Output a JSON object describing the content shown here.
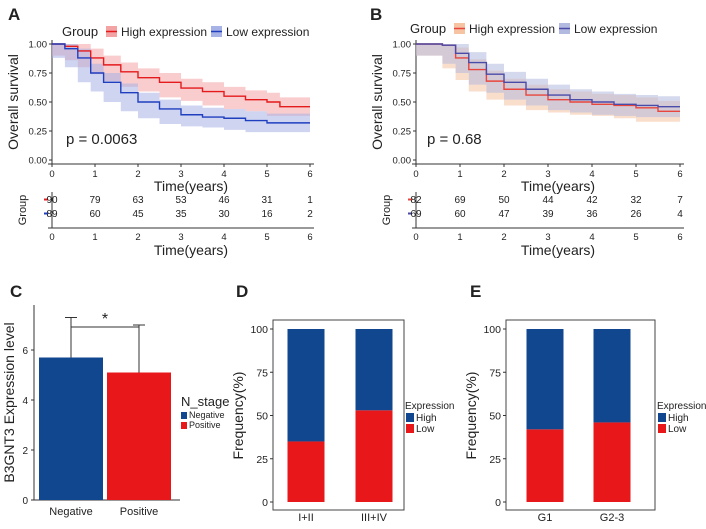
{
  "chart_data": [
    {
      "panel": "A",
      "type": "line",
      "subtype": "kaplan-meier",
      "legend_title": "Group",
      "series": [
        {
          "name": "High expression",
          "color": "#e41a1c",
          "ci_color": "#f4a3a5",
          "x": [
            0,
            0.3,
            0.6,
            0.9,
            1.2,
            1.6,
            2.0,
            2.5,
            3.0,
            3.5,
            4.0,
            4.5,
            5.0,
            5.3,
            6.0
          ],
          "y": [
            1.0,
            0.98,
            0.94,
            0.88,
            0.82,
            0.76,
            0.71,
            0.67,
            0.62,
            0.59,
            0.55,
            0.52,
            0.5,
            0.46,
            0.46
          ]
        },
        {
          "name": "Low expression",
          "color": "#1f3fbf",
          "ci_color": "#a7b3e6",
          "x": [
            0,
            0.3,
            0.6,
            0.9,
            1.2,
            1.6,
            2.0,
            2.5,
            3.0,
            3.5,
            4.0,
            4.5,
            5.0,
            6.0
          ],
          "y": [
            1.0,
            0.96,
            0.88,
            0.75,
            0.67,
            0.58,
            0.5,
            0.44,
            0.39,
            0.37,
            0.36,
            0.34,
            0.32,
            0.32
          ]
        }
      ],
      "ci_half_width": 0.08,
      "pvalue": "p = 0.0063",
      "xlabel": "Time(years)",
      "ylabel": "Overall survival",
      "xticks": [
        "0",
        "1",
        "2",
        "3",
        "4",
        "5",
        "6"
      ],
      "yticks": [
        "0.00",
        "0.25",
        "0.50",
        "0.75",
        "1.00"
      ],
      "xlim": [
        0,
        6
      ],
      "ylim": [
        0,
        1
      ],
      "risk_table": {
        "ylabel": "Group",
        "rows": [
          {
            "color": "#e41a1c",
            "values": [
              "90",
              "79",
              "63",
              "53",
              "46",
              "31",
              "1"
            ]
          },
          {
            "color": "#1f3fbf",
            "values": [
              "89",
              "60",
              "45",
              "35",
              "30",
              "16",
              "2"
            ]
          }
        ],
        "xticks": [
          "0",
          "1",
          "2",
          "3",
          "4",
          "5",
          "6"
        ],
        "xlabel": "Time(years)"
      }
    },
    {
      "panel": "B",
      "type": "line",
      "subtype": "kaplan-meier",
      "legend_title": "Group",
      "series": [
        {
          "name": "High expression",
          "color": "#e8453c",
          "ci_color": "#f6c3a3",
          "x": [
            0,
            0.6,
            0.9,
            1.2,
            1.6,
            2.0,
            2.5,
            3.0,
            3.5,
            4.0,
            4.5,
            5.0,
            5.5,
            6.0
          ],
          "y": [
            1.0,
            0.99,
            0.88,
            0.78,
            0.68,
            0.61,
            0.56,
            0.52,
            0.5,
            0.48,
            0.47,
            0.45,
            0.42,
            0.42
          ]
        },
        {
          "name": "Low expression",
          "color": "#4a4aa8",
          "ci_color": "#b3badf",
          "x": [
            0,
            0.6,
            0.9,
            1.2,
            1.6,
            2.0,
            2.5,
            3.0,
            3.5,
            4.0,
            4.5,
            5.0,
            5.5,
            6.0
          ],
          "y": [
            1.0,
            0.99,
            0.92,
            0.84,
            0.74,
            0.67,
            0.61,
            0.56,
            0.52,
            0.5,
            0.48,
            0.47,
            0.46,
            0.46
          ]
        }
      ],
      "ci_half_width": 0.09,
      "pvalue": "p = 0.68",
      "xlabel": "Time(years)",
      "ylabel": "Overall survival",
      "xticks": [
        "0",
        "1",
        "2",
        "3",
        "4",
        "5",
        "6"
      ],
      "yticks": [
        "0.00",
        "0.25",
        "0.50",
        "0.75",
        "1.00"
      ],
      "xlim": [
        0,
        6
      ],
      "ylim": [
        0,
        1
      ],
      "risk_table": {
        "ylabel": "Group",
        "rows": [
          {
            "color": "#e8453c",
            "values": [
              "82",
              "69",
              "50",
              "44",
              "42",
              "32",
              "7"
            ]
          },
          {
            "color": "#4a4aa8",
            "values": [
              "69",
              "60",
              "47",
              "39",
              "36",
              "26",
              "4"
            ]
          }
        ],
        "xticks": [
          "0",
          "1",
          "2",
          "3",
          "4",
          "5",
          "6"
        ],
        "xlabel": "Time(years)"
      }
    },
    {
      "panel": "C",
      "type": "bar",
      "categories": [
        "Negative",
        "Positive"
      ],
      "values": [
        5.7,
        5.1
      ],
      "errors": [
        1.6,
        1.9
      ],
      "colors": [
        "#11478f",
        "#e8171a"
      ],
      "ylabel": "B3GNT3 Expression level",
      "yticks": [
        "0",
        "2",
        "4",
        "6"
      ],
      "ylim": [
        0,
        7.8
      ],
      "significance": "*",
      "legend_title": "N_stage",
      "legend": [
        "Negative",
        "Positive"
      ]
    },
    {
      "panel": "D",
      "type": "bar",
      "stacked": true,
      "categories": [
        "I+II",
        "III+IV"
      ],
      "series": [
        {
          "name": "Low",
          "color": "#e8171a",
          "values": [
            35,
            53
          ]
        },
        {
          "name": "High",
          "color": "#11478f",
          "values": [
            65,
            47
          ]
        }
      ],
      "ylabel": "Frequency(%)",
      "yticks": [
        "0",
        "25",
        "50",
        "75",
        "100"
      ],
      "ylim": [
        0,
        100
      ],
      "legend_title": "Expression",
      "legend": [
        "High",
        "Low"
      ]
    },
    {
      "panel": "E",
      "type": "bar",
      "stacked": true,
      "categories": [
        "G1",
        "G2-3"
      ],
      "series": [
        {
          "name": "Low",
          "color": "#e8171a",
          "values": [
            42,
            46
          ]
        },
        {
          "name": "High",
          "color": "#11478f",
          "values": [
            58,
            54
          ]
        }
      ],
      "ylabel": "Frequency(%)",
      "yticks": [
        "0",
        "25",
        "50",
        "75",
        "100"
      ],
      "ylim": [
        0,
        100
      ],
      "legend_title": "Expression",
      "legend": [
        "High",
        "Low"
      ]
    }
  ]
}
